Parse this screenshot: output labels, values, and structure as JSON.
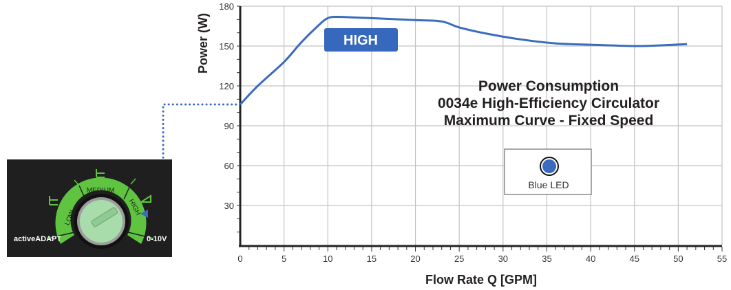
{
  "chart_data": {
    "type": "line",
    "title": "Power Consumption",
    "subtitle_lines": [
      "0034e High-Efficiency Circulator",
      "Maximum Curve - Fixed Speed"
    ],
    "xlabel": "Flow Rate Q [GPM]",
    "ylabel": "Power (W)",
    "xlim": [
      0,
      55
    ],
    "ylim": [
      0,
      180
    ],
    "x_ticks": [
      0,
      5,
      10,
      15,
      20,
      25,
      30,
      35,
      40,
      45,
      50,
      55
    ],
    "y_ticks": [
      30,
      60,
      90,
      120,
      150,
      180
    ],
    "grid": true,
    "series": [
      {
        "name": "HIGH",
        "color": "#3a6bbf",
        "x": [
          0,
          2,
          5,
          7,
          9,
          10,
          11,
          13,
          15,
          20,
          23,
          25,
          28,
          32,
          36,
          40,
          45,
          48,
          51
        ],
        "y": [
          106,
          120,
          138,
          153,
          166,
          171,
          172,
          171.5,
          171,
          169.5,
          168.5,
          164,
          159.5,
          155,
          152,
          151,
          150,
          150.5,
          151.5
        ]
      }
    ],
    "annotations": {
      "series_badge": "HIGH",
      "legend_box_label": "Blue LED",
      "legend_color": "#3a6bbf"
    }
  },
  "dial": {
    "labels": {
      "low": "LOW",
      "medium": "MEDIUM",
      "high": "HIGH"
    },
    "left_label": "activeADAPT",
    "right_label": "0-10V",
    "selected": "HIGH"
  },
  "colors": {
    "curve": "#3a6bbf",
    "badge_bg": "#3668bd",
    "dial_green": "#5fc440",
    "panel_bg": "#1f1f1f",
    "grid": "#c2c2c2",
    "axis": "#222222"
  }
}
